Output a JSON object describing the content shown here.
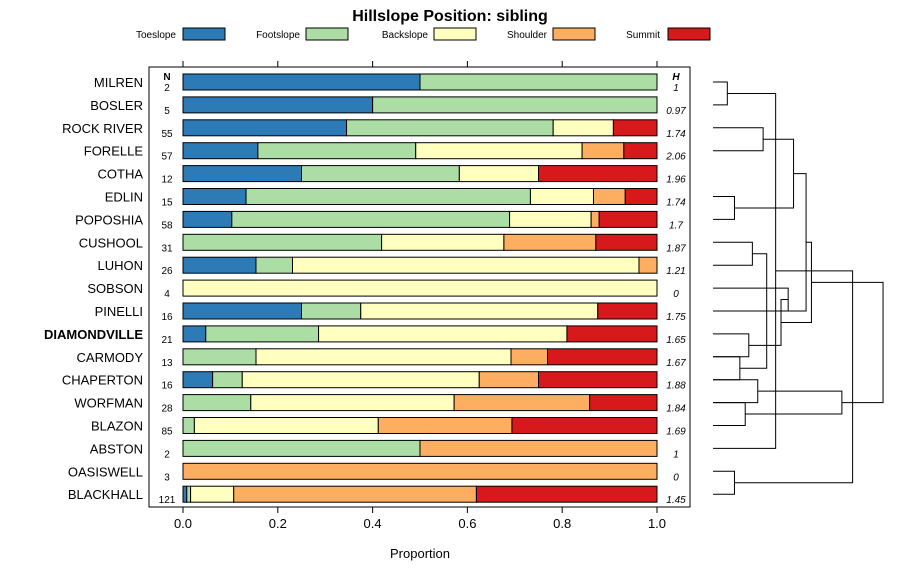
{
  "chart_data": {
    "type": "bar",
    "orientation": "horizontal-stacked",
    "title": "Hillslope Position: sibling",
    "xlabel": "Proportion",
    "xlim": [
      0,
      1
    ],
    "x_ticks": [
      "0.0",
      "0.2",
      "0.4",
      "0.6",
      "0.8",
      "1.0"
    ],
    "n_header": "N",
    "h_header": "H",
    "series": [
      {
        "name": "Toeslope",
        "color": "#2c7bb6"
      },
      {
        "name": "Footslope",
        "color": "#abdda4"
      },
      {
        "name": "Backslope",
        "color": "#ffffbf"
      },
      {
        "name": "Shoulder",
        "color": "#fdae61"
      },
      {
        "name": "Summit",
        "color": "#d7191c"
      }
    ],
    "rows": [
      {
        "name": "MILREN",
        "n": "2",
        "h": "1",
        "values": [
          0.5,
          0.5,
          0,
          0,
          0
        ]
      },
      {
        "name": "BOSLER",
        "n": "5",
        "h": "0.97",
        "values": [
          0.4,
          0.6,
          0,
          0,
          0
        ]
      },
      {
        "name": "ROCK RIVER",
        "n": "55",
        "h": "1.74",
        "values": [
          0.345,
          0.436,
          0.127,
          0,
          0.092
        ]
      },
      {
        "name": "FORELLE",
        "n": "57",
        "h": "2.06",
        "values": [
          0.158,
          0.333,
          0.351,
          0.088,
          0.07
        ]
      },
      {
        "name": "COTHA",
        "n": "12",
        "h": "1.96",
        "values": [
          0.25,
          0.333,
          0.167,
          0,
          0.25
        ]
      },
      {
        "name": "EDLIN",
        "n": "15",
        "h": "1.74",
        "values": [
          0.133,
          0.6,
          0.133,
          0.067,
          0.067
        ]
      },
      {
        "name": "POPOSHIA",
        "n": "58",
        "h": "1.7",
        "values": [
          0.103,
          0.586,
          0.172,
          0.017,
          0.122
        ]
      },
      {
        "name": "CUSHOOL",
        "n": "31",
        "h": "1.87",
        "values": [
          0,
          0.419,
          0.258,
          0.194,
          0.129
        ]
      },
      {
        "name": "LUHON",
        "n": "26",
        "h": "1.21",
        "values": [
          0.154,
          0.077,
          0.731,
          0.038,
          0
        ]
      },
      {
        "name": "SOBSON",
        "n": "4",
        "h": "0",
        "values": [
          0,
          0,
          1,
          0,
          0
        ]
      },
      {
        "name": "PINELLI",
        "n": "16",
        "h": "1.75",
        "values": [
          0.25,
          0.125,
          0.5,
          0,
          0.125
        ]
      },
      {
        "name": "DIAMONDVILLE",
        "n": "21",
        "h": "1.65",
        "bold": true,
        "values": [
          0.048,
          0.238,
          0.524,
          0,
          0.19
        ]
      },
      {
        "name": "CARMODY",
        "n": "13",
        "h": "1.67",
        "values": [
          0,
          0.154,
          0.538,
          0.077,
          0.231
        ]
      },
      {
        "name": "CHAPERTON",
        "n": "16",
        "h": "1.88",
        "values": [
          0.0625,
          0.0625,
          0.5,
          0.125,
          0.25
        ]
      },
      {
        "name": "WORFMAN",
        "n": "28",
        "h": "1.84",
        "values": [
          0,
          0.143,
          0.429,
          0.286,
          0.142
        ]
      },
      {
        "name": "BLAZON",
        "n": "85",
        "h": "1.69",
        "values": [
          0,
          0.024,
          0.388,
          0.282,
          0.306
        ]
      },
      {
        "name": "ABSTON",
        "n": "2",
        "h": "1",
        "values": [
          0,
          0.5,
          0,
          0.5,
          0
        ]
      },
      {
        "name": "OASISWELL",
        "n": "3",
        "h": "0",
        "values": [
          0,
          0,
          0,
          1,
          0
        ]
      },
      {
        "name": "BLACKHALL",
        "n": "121",
        "h": "1.45",
        "values": [
          0.008,
          0.008,
          0.091,
          0.512,
          0.381
        ]
      }
    ],
    "dendrogram": {
      "merges": [
        [
          0,
          1,
          0.08
        ],
        [
          2,
          3,
          0.28
        ],
        [
          5,
          6,
          0.12
        ],
        [
          7,
          8,
          0.22
        ],
        [
          12,
          13,
          0.15
        ],
        [
          14,
          15,
          0.18
        ],
        [
          9,
          10,
          0.42
        ],
        [
          11,
          12,
          0.2
        ],
        [
          13,
          14,
          0.25
        ],
        [
          20,
          21,
          0.45
        ],
        [
          22,
          23,
          0.3
        ],
        [
          25,
          26,
          0.38
        ],
        [
          28,
          29,
          0.52
        ],
        [
          17,
          18,
          0.12
        ],
        [
          19,
          16,
          0.35
        ],
        [
          30,
          31,
          0.55
        ],
        [
          24,
          27,
          0.72
        ],
        [
          32,
          33,
          0.78
        ],
        [
          35,
          34,
          0.95
        ]
      ]
    }
  }
}
